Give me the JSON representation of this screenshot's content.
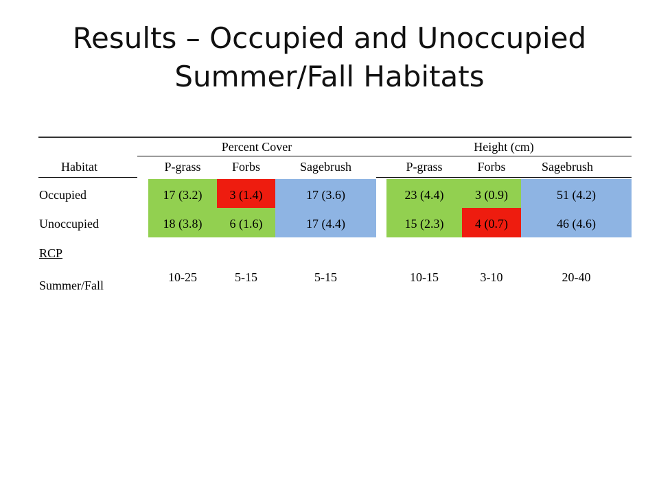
{
  "slide": {
    "title_line1": "Results – Occupied and Unoccupied",
    "title_line2": "Summer/Fall Habitats"
  },
  "table": {
    "group_headers": {
      "percent_cover": "Percent Cover",
      "height": "Height (cm)"
    },
    "column_headers": {
      "habitat": "Habitat",
      "pc_pgrass": "P-grass",
      "pc_forbs": "Forbs",
      "pc_sagebrush": "Sagebrush",
      "h_pgrass": "P-grass",
      "h_forbs": "Forbs",
      "h_sagebrush": "Sagebrush"
    },
    "rows": {
      "occupied": {
        "label": "Occupied",
        "pc_pgrass": "17 (3.2)",
        "pc_forbs": "3 (1.4)",
        "pc_sagebrush": "17 (3.6)",
        "h_pgrass": "23 (4.4)",
        "h_forbs": "3 (0.9)",
        "h_sagebrush": "51 (4.2)"
      },
      "unoccupied": {
        "label": "Unoccupied",
        "pc_pgrass": "18 (3.8)",
        "pc_forbs": "6 (1.6)",
        "pc_sagebrush": "17 (4.4)",
        "h_pgrass": "15 (2.3)",
        "h_forbs": "4 (0.7)",
        "h_sagebrush": "46 (4.6)"
      },
      "rcp": {
        "label_line1": "RCP",
        "label_line2": "Summer/Fall",
        "pc_pgrass": "10-25",
        "pc_forbs": "5-15",
        "pc_sagebrush": "5-15",
        "h_pgrass": "10-15",
        "h_forbs": "3-10",
        "h_sagebrush": "20-40"
      }
    },
    "colors": {
      "green": "#92d050",
      "red": "#ee1c0f",
      "blue": "#8eb4e3"
    }
  }
}
